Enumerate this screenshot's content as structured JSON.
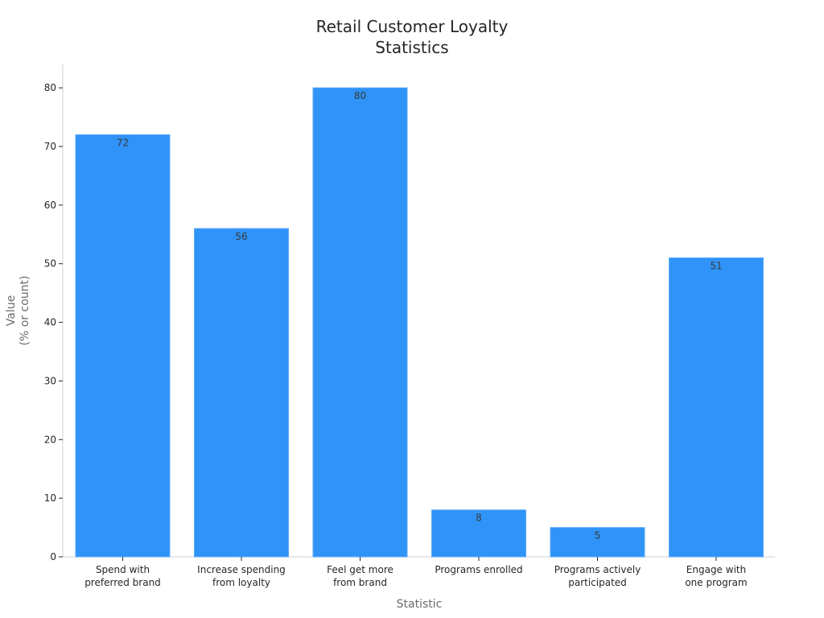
{
  "chart_data": {
    "type": "bar",
    "title_lines": [
      "Retail Customer Loyalty",
      "Statistics"
    ],
    "xlabel": "Statistic",
    "ylabel_lines": [
      "Value",
      "(% or count)"
    ],
    "categories": [
      [
        "Spend with",
        "preferred brand"
      ],
      [
        "Increase spending",
        "from loyalty"
      ],
      [
        "Feel get more",
        "from brand"
      ],
      [
        "Programs enrolled"
      ],
      [
        "Programs actively",
        "participated"
      ],
      [
        "Engage with",
        "one program"
      ]
    ],
    "values": [
      72,
      56,
      80,
      8,
      5,
      51
    ],
    "ylim": [
      0,
      84
    ],
    "yticks": [
      0,
      10,
      20,
      30,
      40,
      50,
      60,
      70,
      80
    ],
    "bar_color": "#2f93f7",
    "bar_edge_color": "#5aaaf9",
    "grid": false,
    "legend": "none"
  }
}
